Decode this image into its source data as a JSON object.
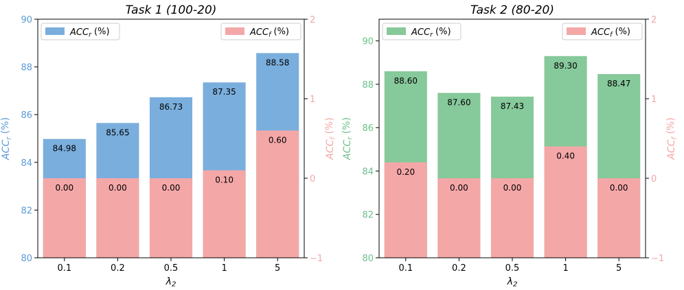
{
  "chart_data": [
    {
      "type": "bar",
      "title": "Task 1 (100-20)",
      "categories": [
        "0.1",
        "0.2",
        "0.5",
        "1",
        "5"
      ],
      "xlabel": "λ2",
      "left_axis": {
        "label": "ACCr (%)",
        "ylim": [
          80,
          90
        ],
        "ticks": [
          "80",
          "82",
          "84",
          "86",
          "88",
          "90"
        ],
        "color": "#5b9bd5"
      },
      "right_axis": {
        "label": "ACCf (%)",
        "ylim": [
          -1,
          2
        ],
        "ticks": [
          "−1",
          "0",
          "1",
          "2"
        ],
        "color": "#f4a6a6"
      },
      "series": [
        {
          "name": "ACCr (%)",
          "axis": "left",
          "color": "#7aaedd",
          "values": [
            84.98,
            85.65,
            86.73,
            87.35,
            88.58
          ],
          "labels": [
            "84.98",
            "85.65",
            "86.73",
            "87.35",
            "88.58"
          ]
        },
        {
          "name": "ACCf (%)",
          "axis": "right",
          "color": "#f4a7a7",
          "values": [
            0.0,
            0.0,
            0.0,
            0.1,
            0.6
          ],
          "labels": [
            "0.00",
            "0.00",
            "0.00",
            "0.10",
            "0.60"
          ]
        }
      ],
      "legend": {
        "left": "ACCr (%)",
        "right": "ACCf (%)",
        "placement": "top"
      }
    },
    {
      "type": "bar",
      "title": "Task 2 (80-20)",
      "categories": [
        "0.1",
        "0.2",
        "0.5",
        "1",
        "5"
      ],
      "xlabel": "λ2",
      "left_axis": {
        "label": "ACCr (%)",
        "ylim": [
          80,
          91
        ],
        "ticks": [
          "80",
          "82",
          "84",
          "86",
          "88",
          "90"
        ],
        "color": "#6cc08b"
      },
      "right_axis": {
        "label": "ACCf (%)",
        "ylim": [
          -1,
          2
        ],
        "ticks": [
          "−1",
          "0",
          "1",
          "2"
        ],
        "color": "#f4a6a6"
      },
      "series": [
        {
          "name": "ACCr (%)",
          "axis": "left",
          "color": "#86c99b",
          "values": [
            88.6,
            87.6,
            87.43,
            89.3,
            88.47
          ],
          "labels": [
            "88.60",
            "87.60",
            "87.43",
            "89.30",
            "88.47"
          ]
        },
        {
          "name": "ACCf (%)",
          "axis": "right",
          "color": "#f4a7a7",
          "values": [
            0.2,
            0.0,
            0.0,
            0.4,
            0.0
          ],
          "labels": [
            "0.20",
            "0.00",
            "0.00",
            "0.40",
            "0.00"
          ]
        }
      ],
      "legend": {
        "left": "ACCr (%)",
        "right": "ACCf (%)",
        "placement": "top"
      }
    }
  ]
}
